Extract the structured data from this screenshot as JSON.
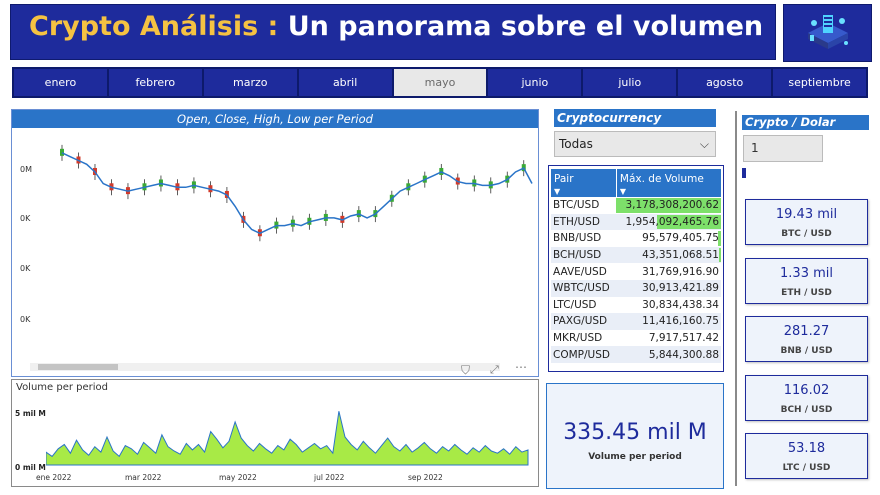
{
  "header": {
    "title_accent": "Crypto Análisis :",
    "title_rest": " Un panorama sobre el volumen",
    "logo_icon": "crypto-server-illustration-icon"
  },
  "months": [
    {
      "label": "enero",
      "selected": false
    },
    {
      "label": "febrero",
      "selected": false
    },
    {
      "label": "marzo",
      "selected": false
    },
    {
      "label": "abril",
      "selected": false
    },
    {
      "label": "mayo",
      "selected": true
    },
    {
      "label": "junio",
      "selected": false
    },
    {
      "label": "julio",
      "selected": false
    },
    {
      "label": "agosto",
      "selected": false
    },
    {
      "label": "septiembre",
      "selected": false
    }
  ],
  "candle_chart": {
    "title": "Open, Close, High, Low per Period",
    "yticks": [
      "0M",
      "0K",
      "0K",
      "0K"
    ]
  },
  "volume_chart": {
    "title": "Volume per period",
    "yticks": [
      "5 mil M",
      "0 mil M"
    ],
    "xticks": [
      "ene 2022",
      "mar 2022",
      "may 2022",
      "jul 2022",
      "sep 2022"
    ]
  },
  "chart_data": [
    {
      "type": "line",
      "title": "Open, Close, High, Low per Period",
      "series": [
        {
          "values": [
            0.9,
            0.88,
            0.86,
            0.84,
            0.8,
            0.74,
            0.72,
            0.71,
            0.7,
            0.71,
            0.72,
            0.73,
            0.74,
            0.73,
            0.72,
            0.72,
            0.73,
            0.72,
            0.71,
            0.7,
            0.68,
            0.62,
            0.55,
            0.5,
            0.48,
            0.5,
            0.52,
            0.52,
            0.53,
            0.52,
            0.54,
            0.55,
            0.56,
            0.56,
            0.55,
            0.57,
            0.58,
            0.56,
            0.58,
            0.62,
            0.66,
            0.7,
            0.72,
            0.74,
            0.76,
            0.78,
            0.8,
            0.78,
            0.75,
            0.74,
            0.74,
            0.73,
            0.73,
            0.74,
            0.76,
            0.8,
            0.82,
            0.74
          ]
        }
      ]
    },
    {
      "type": "area",
      "title": "Volume per period",
      "xticks": [
        "ene 2022",
        "mar 2022",
        "may 2022",
        "jul 2022",
        "sep 2022"
      ],
      "yticks": [
        "5 mil M",
        "0 mil M"
      ],
      "series": [
        {
          "values": [
            1.2,
            0.8,
            1.5,
            1.9,
            1.1,
            2.3,
            1.4,
            0.9,
            1.7,
            1.2,
            2.6,
            1.3,
            0.8,
            1.8,
            1.5,
            1.0,
            2.1,
            1.6,
            1.1,
            2.8,
            1.7,
            1.3,
            1.0,
            2.0,
            1.4,
            1.9,
            1.2,
            3.1,
            2.4,
            1.6,
            2.2,
            4.0,
            2.5,
            1.8,
            1.3,
            2.0,
            1.5,
            1.1,
            1.8,
            1.4,
            2.4,
            1.9,
            1.2,
            1.6,
            2.0,
            1.5,
            1.8,
            1.1,
            5.0,
            2.6,
            1.9,
            1.4,
            2.2,
            1.6,
            1.1,
            1.8,
            2.5,
            1.7,
            1.3,
            1.9,
            1.2,
            1.6,
            2.1,
            1.5,
            1.1,
            1.7,
            1.3,
            1.9,
            1.4,
            1.0,
            1.6,
            1.2,
            1.8,
            1.3,
            1.1,
            1.5,
            1.0,
            1.7,
            1.2,
            1.4
          ]
        }
      ]
    }
  ],
  "crypto_filter": {
    "label": "Cryptocurrency",
    "selected": "Todas"
  },
  "pair_table": {
    "col_pair": "Pair",
    "col_volume": "Máx. de Volume",
    "rows": [
      {
        "pair": "BTC/USD",
        "volume": "3,178,308,200.62",
        "bar": 1.0
      },
      {
        "pair": "ETH/USD",
        "volume": "1,954,092,465.76",
        "bar": 0.61
      },
      {
        "pair": "BNB/USD",
        "volume": "95,579,405.75",
        "bar": 0.03
      },
      {
        "pair": "BCH/USD",
        "volume": "43,351,068.51",
        "bar": 0.015
      },
      {
        "pair": "AAVE/USD",
        "volume": "31,769,916.90",
        "bar": 0
      },
      {
        "pair": "WBTC/USD",
        "volume": "30,913,421.89",
        "bar": 0
      },
      {
        "pair": "LTC/USD",
        "volume": "30,834,438.34",
        "bar": 0
      },
      {
        "pair": "PAXG/USD",
        "volume": "11,416,160.75",
        "bar": 0
      },
      {
        "pair": "MKR/USD",
        "volume": "7,917,517.42",
        "bar": 0
      },
      {
        "pair": "COMP/USD",
        "volume": "5,844,300.88",
        "bar": 0
      }
    ]
  },
  "volume_card": {
    "value": "335.45 mil M",
    "label": "Volume per period"
  },
  "crypto_dolar": {
    "label": "Crypto / Dolar",
    "value": "1"
  },
  "price_cards": [
    {
      "value": "19.43 mil",
      "label": "BTC / USD"
    },
    {
      "value": "1.33 mil",
      "label": "ETH / USD"
    },
    {
      "value": "281.27",
      "label": "BNB / USD"
    },
    {
      "value": "116.02",
      "label": "BCH / USD"
    },
    {
      "value": "53.18",
      "label": "LTC / USD"
    }
  ],
  "colors": {
    "navy": "#1e2b9c",
    "blue": "#2a74c8",
    "accent": "#f5c242",
    "green": "#7de06a",
    "candle_up": "#3aaa35",
    "candle_down": "#d23a2a"
  }
}
